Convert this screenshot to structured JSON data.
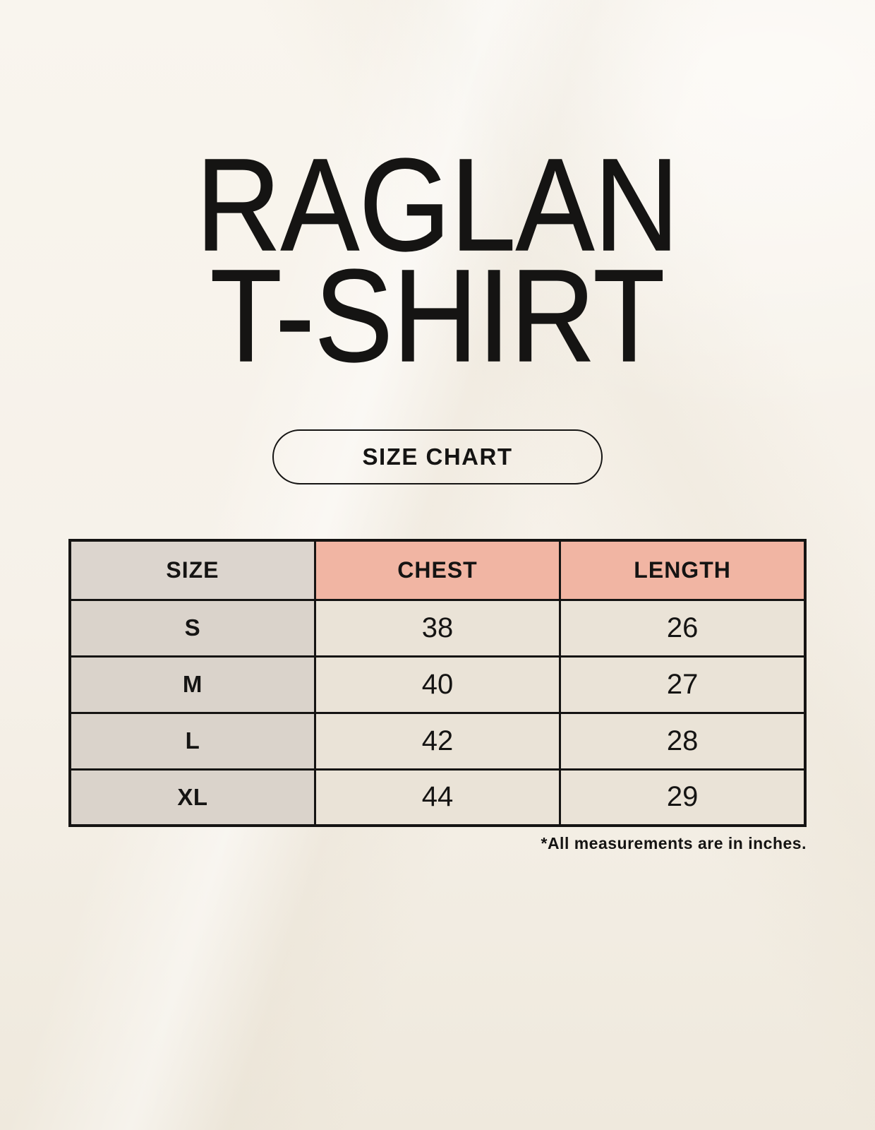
{
  "header": {
    "title_line1": "RAGLAN",
    "title_line2": "T-SHIRT",
    "size_chart_label": "SIZE CHART"
  },
  "size_table": {
    "columns": [
      "SIZE",
      "CHEST",
      "LENGTH"
    ],
    "rows": [
      [
        "S",
        "38",
        "26"
      ],
      [
        "M",
        "40",
        "27"
      ],
      [
        "L",
        "42",
        "28"
      ],
      [
        "XL",
        "44",
        "29"
      ]
    ]
  },
  "footnote": {
    "text": "*All measurements are in inches."
  },
  "colors": {
    "bg-top": "#f9f5ee",
    "bg-bottom": "#efe9dd",
    "ink": "#151413",
    "pink-header": "#f1b5a3",
    "gray-header": "#dcd5ce",
    "size-cell": "#dad3cb",
    "data-cell": "#eae3d7",
    "table-border": "#151413"
  },
  "chart_data": {
    "type": "table",
    "title": "RAGLAN T-SHIRT — SIZE CHART",
    "columns": [
      "SIZE",
      "CHEST",
      "LENGTH"
    ],
    "rows": [
      [
        "S",
        38,
        26
      ],
      [
        "M",
        40,
        27
      ],
      [
        "L",
        42,
        28
      ],
      [
        "XL",
        44,
        29
      ]
    ],
    "units_note": "*All measurements are in inches."
  }
}
